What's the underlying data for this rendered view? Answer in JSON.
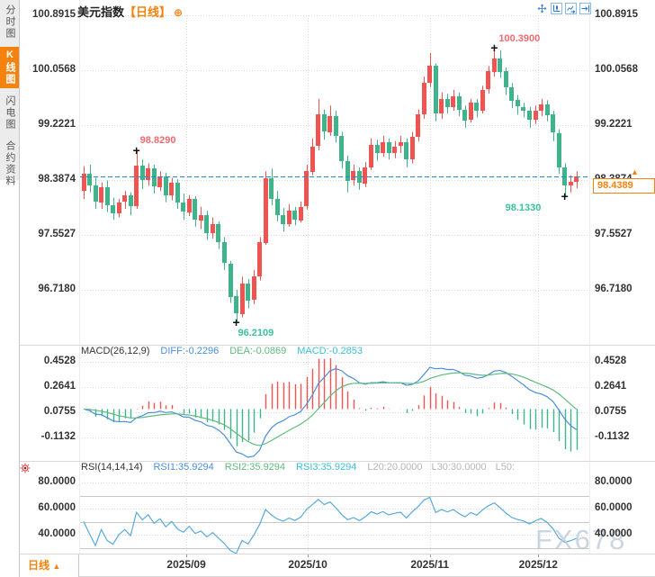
{
  "window": {
    "title": "美元指数",
    "period_tag": "【日线】",
    "add_icon": "⊕"
  },
  "sidebar": {
    "tabs": [
      {
        "label": "分时图",
        "active": false
      },
      {
        "label": "K线图",
        "active": true
      },
      {
        "label": "闪电图",
        "active": false
      },
      {
        "label": "合约资料",
        "active": false
      }
    ]
  },
  "toolbar": {
    "icons": [
      "crosshair-move",
      "axis-scale",
      "chart-forward",
      "goto-latest"
    ]
  },
  "main_chart": {
    "y_ticks": [
      "100.8915",
      "100.0568",
      "99.2221",
      "98.3874",
      "97.5527",
      "96.7180"
    ],
    "annotations": {
      "mid_high": "98.8290",
      "top_high": "100.3900",
      "bottom_low": "96.2109",
      "recent_low": "98.1330"
    },
    "last_price": "98.4389",
    "marker_plus": "+",
    "marker_arrow": "▲"
  },
  "macd_panel": {
    "title": "MACD(26,12,9)",
    "diff": "DIFF:-0.2296",
    "dea": "DEA:-0.0869",
    "macd": "MACD:-0.2853",
    "y_ticks": [
      "0.4528",
      "0.2641",
      "0.0755",
      "-0.1132"
    ]
  },
  "rsi_panel": {
    "title": "RSI(14,14,14)",
    "rsi1": "RSI1:35.9294",
    "rsi2": "RSI2:35.9294",
    "rsi3": "RSI3:35.9294",
    "l20": "L20:20.0000",
    "l30": "L30:30.0000",
    "l50": "L50:",
    "y_ticks": [
      "80.0000",
      "60.0000",
      "40.0000"
    ]
  },
  "x_axis": {
    "labels": [
      "2025/09",
      "2025/10",
      "2025/11",
      "2025/12"
    ]
  },
  "footer": {
    "period": "日线",
    "arrow": "▲"
  },
  "watermark": "FX678",
  "colors": {
    "up": "#ee5451",
    "down": "#3fb389",
    "accent_orange": "#f5820d",
    "dashed_line": "#1e88e5",
    "diff_line": "#4a8fdc",
    "dea_line": "#5fba7d",
    "macd_value": "#3bbfd4",
    "rsi_line": "#56aadc",
    "ann_high": "#ef6a72",
    "ann_low": "#3ec19e",
    "grid": "#d9d9d9",
    "rsi_level": "#c8c8c8"
  },
  "chart_data": {
    "type": "candlestick",
    "title": "美元指数 日线",
    "columns": "[open, high, low, close]",
    "y_axis": {
      "values": [
        100.8915,
        100.0568,
        99.2221,
        98.3874,
        97.5527,
        96.718
      ]
    },
    "current_price": 98.4389,
    "x_axis": {
      "labels": [
        "2025/09",
        "2025/10",
        "2025/11",
        "2025/12"
      ],
      "label_candle_index": [
        17.5,
        38.2,
        59.0,
        77.5
      ]
    },
    "candles": [
      [
        98.22,
        98.6,
        98.1,
        98.48
      ],
      [
        98.48,
        98.62,
        98.2,
        98.3
      ],
      [
        98.3,
        98.42,
        97.95,
        98.05
      ],
      [
        98.05,
        98.35,
        97.95,
        98.28
      ],
      [
        98.28,
        98.38,
        97.9,
        98.0
      ],
      [
        98.0,
        98.12,
        97.78,
        97.88
      ],
      [
        97.88,
        98.1,
        97.82,
        98.05
      ],
      [
        98.05,
        98.22,
        97.95,
        98.15
      ],
      [
        98.15,
        98.2,
        97.85,
        97.98
      ],
      [
        97.98,
        98.829,
        97.95,
        98.6
      ],
      [
        98.6,
        98.7,
        98.25,
        98.38
      ],
      [
        98.38,
        98.64,
        98.3,
        98.56
      ],
      [
        98.56,
        98.62,
        98.18,
        98.28
      ],
      [
        98.28,
        98.52,
        98.22,
        98.44
      ],
      [
        98.44,
        98.5,
        98.05,
        98.15
      ],
      [
        98.15,
        98.42,
        98.08,
        98.34
      ],
      [
        98.34,
        98.4,
        97.95,
        98.04
      ],
      [
        98.04,
        98.18,
        97.78,
        97.9
      ],
      [
        97.9,
        98.16,
        97.84,
        98.1
      ],
      [
        98.1,
        98.14,
        97.68,
        97.78
      ],
      [
        97.78,
        97.98,
        97.64,
        97.86
      ],
      [
        97.86,
        97.92,
        97.48,
        97.58
      ],
      [
        97.58,
        97.82,
        97.5,
        97.72
      ],
      [
        97.72,
        97.76,
        97.34,
        97.44
      ],
      [
        97.44,
        97.52,
        97.02,
        97.12
      ],
      [
        97.12,
        97.16,
        96.52,
        96.62
      ],
      [
        96.62,
        96.72,
        96.2109,
        96.36
      ],
      [
        96.36,
        96.92,
        96.3,
        96.82
      ],
      [
        96.82,
        96.88,
        96.44,
        96.56
      ],
      [
        96.56,
        97.02,
        96.5,
        96.92
      ],
      [
        96.92,
        97.52,
        96.86,
        97.44
      ],
      [
        97.44,
        98.52,
        97.4,
        98.42
      ],
      [
        98.42,
        98.56,
        98.0,
        98.1
      ],
      [
        98.1,
        98.22,
        97.76,
        97.86
      ],
      [
        97.86,
        97.96,
        97.6,
        97.72
      ],
      [
        97.72,
        98.02,
        97.68,
        97.92
      ],
      [
        97.92,
        97.98,
        97.7,
        97.78
      ],
      [
        97.78,
        98.06,
        97.74,
        97.98
      ],
      [
        97.98,
        98.62,
        97.94,
        98.52
      ],
      [
        98.52,
        99.02,
        98.46,
        98.9
      ],
      [
        98.9,
        99.62,
        98.84,
        99.38
      ],
      [
        99.38,
        99.46,
        99.0,
        99.12
      ],
      [
        99.12,
        99.52,
        99.06,
        99.36
      ],
      [
        99.36,
        99.44,
        98.96,
        99.06
      ],
      [
        99.06,
        99.12,
        98.56,
        98.68
      ],
      [
        98.68,
        98.76,
        98.2,
        98.38
      ],
      [
        98.38,
        98.62,
        98.3,
        98.52
      ],
      [
        98.52,
        98.58,
        98.24,
        98.34
      ],
      [
        98.34,
        98.66,
        98.28,
        98.58
      ],
      [
        98.58,
        99.02,
        98.54,
        98.92
      ],
      [
        98.92,
        99.0,
        98.68,
        98.8
      ],
      [
        98.8,
        99.06,
        98.74,
        98.96
      ],
      [
        98.96,
        99.02,
        98.7,
        98.8
      ],
      [
        98.8,
        98.98,
        98.72,
        98.9
      ],
      [
        98.9,
        99.06,
        98.8,
        98.96
      ],
      [
        98.96,
        99.02,
        98.58,
        98.7
      ],
      [
        98.7,
        99.12,
        98.64,
        99.04
      ],
      [
        99.04,
        99.46,
        98.98,
        99.38
      ],
      [
        99.38,
        99.96,
        99.32,
        99.86
      ],
      [
        99.86,
        100.32,
        99.8,
        100.12
      ],
      [
        100.12,
        100.16,
        99.28,
        99.4
      ],
      [
        99.4,
        99.72,
        99.32,
        99.62
      ],
      [
        99.62,
        99.7,
        99.4,
        99.5
      ],
      [
        99.5,
        99.76,
        99.44,
        99.66
      ],
      [
        99.66,
        99.72,
        99.36,
        99.46
      ],
      [
        99.46,
        99.52,
        99.18,
        99.3
      ],
      [
        99.3,
        99.62,
        99.26,
        99.56
      ],
      [
        99.56,
        99.62,
        99.34,
        99.44
      ],
      [
        99.44,
        99.82,
        99.4,
        99.76
      ],
      [
        99.76,
        100.12,
        99.7,
        100.04
      ],
      [
        100.04,
        100.39,
        99.96,
        100.24
      ],
      [
        100.24,
        100.36,
        99.94,
        100.04
      ],
      [
        100.04,
        100.1,
        99.68,
        99.8
      ],
      [
        99.8,
        99.86,
        99.48,
        99.6
      ],
      [
        99.6,
        99.68,
        99.38,
        99.5
      ],
      [
        99.5,
        99.56,
        99.34,
        99.44
      ],
      [
        99.44,
        99.5,
        99.18,
        99.3
      ],
      [
        99.3,
        99.52,
        99.24,
        99.44
      ],
      [
        99.44,
        99.62,
        99.36,
        99.54
      ],
      [
        99.54,
        99.6,
        99.28,
        99.38
      ],
      [
        99.38,
        99.44,
        98.98,
        99.1
      ],
      [
        99.1,
        99.16,
        98.48,
        98.58
      ],
      [
        98.58,
        98.64,
        98.133,
        98.3
      ],
      [
        98.3,
        98.46,
        98.2,
        98.36
      ],
      [
        98.36,
        98.52,
        98.26,
        98.4389
      ]
    ],
    "annotations": [
      {
        "index": 9,
        "value": 98.829,
        "side": "high",
        "label": "98.8290"
      },
      {
        "index": 70,
        "value": 100.39,
        "side": "high",
        "label": "100.3900"
      },
      {
        "index": 26,
        "value": 96.2109,
        "side": "low",
        "label": "96.2109"
      },
      {
        "index": 82,
        "value": 98.133,
        "side": "low",
        "label": "98.1330"
      }
    ],
    "macd": {
      "params": "26,12,9",
      "ticks": [
        0.4528,
        0.2641,
        0.0755,
        -0.1132
      ],
      "diff": -0.2296,
      "dea": -0.0869,
      "macd": -0.2853
    },
    "rsi": {
      "params": "14,14,14",
      "ticks": [
        80,
        60,
        40
      ],
      "levels": [
        70,
        50,
        30
      ],
      "rsi1": 35.9294,
      "rsi2": 35.9294,
      "rsi3": 35.9294
    }
  }
}
